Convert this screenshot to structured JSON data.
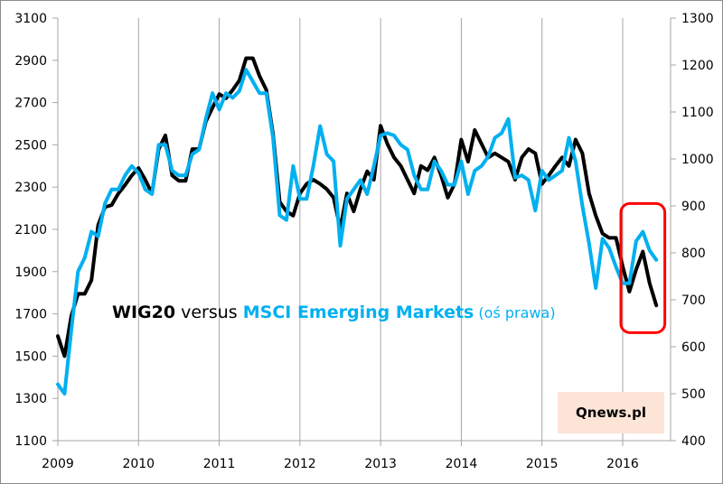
{
  "chart_data": {
    "type": "line",
    "title": "WIG20 versus MSCI Emerging Markets (oś prawa)",
    "title_parts": {
      "wig": "WIG20",
      "versus": " versus ",
      "msci": "MSCI Emerging Markets",
      "note": " (oś prawa)"
    },
    "xlabel": "",
    "ylabel": "",
    "x_ticks": [
      "2009",
      "2010",
      "2011",
      "2012",
      "2013",
      "2014",
      "2015",
      "2016"
    ],
    "x_start": 2009.0,
    "x_end": 2016.75,
    "y_left": {
      "min": 1100,
      "max": 3100,
      "ticks": [
        "1100",
        "1300",
        "1500",
        "1700",
        "1900",
        "2100",
        "2300",
        "2500",
        "2700",
        "2900",
        "3100"
      ]
    },
    "y_right": {
      "min": 400,
      "max": 1300,
      "ticks": [
        "400",
        "500",
        "600",
        "700",
        "800",
        "900",
        "1000",
        "1100",
        "1200",
        "1300"
      ]
    },
    "grid": "vertical",
    "series": [
      {
        "name": "WIG20",
        "axis": "left",
        "color": "#000000",
        "start": "2009-01",
        "frequency": "monthly",
        "values": [
          1595,
          1500,
          1690,
          1795,
          1795,
          1860,
          2120,
          2205,
          2215,
          2270,
          2310,
          2355,
          2390,
          2335,
          2270,
          2480,
          2545,
          2355,
          2330,
          2330,
          2480,
          2480,
          2610,
          2675,
          2740,
          2720,
          2760,
          2805,
          2910,
          2910,
          2825,
          2760,
          2550,
          2230,
          2185,
          2165,
          2270,
          2315,
          2335,
          2315,
          2290,
          2250,
          2105,
          2270,
          2185,
          2290,
          2375,
          2335,
          2590,
          2505,
          2440,
          2400,
          2335,
          2270,
          2400,
          2380,
          2440,
          2355,
          2250,
          2315,
          2525,
          2420,
          2570,
          2505,
          2440,
          2460,
          2440,
          2420,
          2335,
          2440,
          2480,
          2460,
          2315,
          2355,
          2400,
          2440,
          2400,
          2525,
          2460,
          2270,
          2165,
          2080,
          2060,
          2060,
          1925,
          1805,
          1910,
          1995,
          1845,
          1740
        ]
      },
      {
        "name": "MSCI Emerging Markets",
        "axis": "right",
        "color": "#00b0f0",
        "start": "2009-01",
        "frequency": "monthly",
        "values": [
          520,
          500,
          635,
          760,
          790,
          845,
          835,
          905,
          935,
          935,
          965,
          985,
          970,
          935,
          925,
          1030,
          1030,
          975,
          965,
          965,
          1010,
          1020,
          1085,
          1140,
          1105,
          1140,
          1130,
          1145,
          1190,
          1165,
          1140,
          1140,
          1045,
          880,
          870,
          985,
          915,
          915,
          985,
          1070,
          1010,
          995,
          815,
          915,
          935,
          955,
          925,
          985,
          1050,
          1055,
          1050,
          1030,
          1020,
          965,
          935,
          935,
          995,
          975,
          945,
          945,
          995,
          925,
          975,
          985,
          1005,
          1045,
          1055,
          1085,
          960,
          965,
          955,
          890,
          975,
          955,
          965,
          975,
          1045,
          995,
          900,
          820,
          725,
          830,
          810,
          770,
          735,
          735,
          825,
          845,
          805,
          785
        ]
      }
    ],
    "annotations": [
      {
        "type": "highlight-box",
        "color": "#ff0000",
        "x_range": [
          "2016-01",
          "2016-07"
        ],
        "y_right_range": [
          630,
          905
        ]
      },
      {
        "type": "watermark",
        "text": "Qnews.pl",
        "background": "#fce4d6"
      }
    ]
  }
}
